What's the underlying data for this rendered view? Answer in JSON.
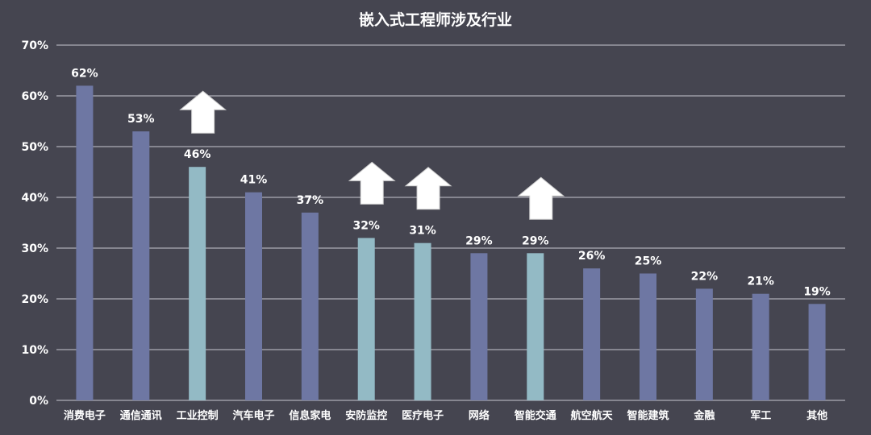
{
  "chart_data": {
    "type": "bar",
    "title": "嵌入式工程师涉及行业",
    "xlabel": "",
    "ylabel": "",
    "ylim": [
      0,
      70
    ],
    "yticks": [
      "0%",
      "10%",
      "20%",
      "30%",
      "40%",
      "50%",
      "60%",
      "70%"
    ],
    "grid": true,
    "categories": [
      "消费电子",
      "通信通讯",
      "工业控制",
      "汽车电子",
      "信息家电",
      "安防监控",
      "医疗电子",
      "网络",
      "智能交通",
      "航空航天",
      "智能建筑",
      "金融",
      "军工",
      "其他"
    ],
    "values": [
      62,
      53,
      46,
      41,
      37,
      32,
      31,
      29,
      29,
      26,
      25,
      22,
      21,
      19
    ],
    "data_labels": [
      "62%",
      "53%",
      "46%",
      "41%",
      "37%",
      "32%",
      "31%",
      "29%",
      "29%",
      "26%",
      "25%",
      "22%",
      "21%",
      "19%"
    ],
    "highlighted": [
      "工业控制",
      "安防监控",
      "医疗电子",
      "智能交通"
    ],
    "up_arrows": [
      "工业控制",
      "安防监控",
      "医疗电子",
      "智能交通"
    ],
    "colors": {
      "bar": "#6e77a3",
      "highlight": "#93bac5",
      "background": "#454550",
      "text": "#ffffff",
      "grid": "#c8c8d0"
    }
  }
}
